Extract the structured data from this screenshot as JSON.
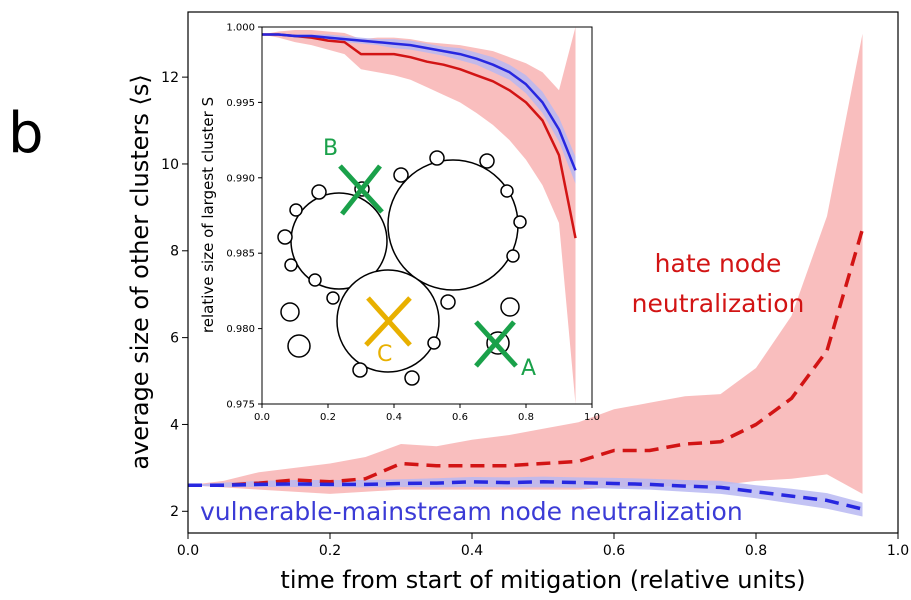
{
  "panel_label": "b",
  "colors": {
    "red": "#d21414",
    "red_band": "#f7a8a8",
    "blue": "#2727e0",
    "blue_band": "#b8b8f2",
    "green": "#1aa14a",
    "yellow": "#e8b000"
  },
  "annotations": {
    "red_line1": "hate node",
    "red_line2": "neutralization",
    "blue": "vulnerable-mainstream node neutralization",
    "marker_a": "A",
    "marker_b": "B",
    "marker_c": "C"
  },
  "chart_data": [
    {
      "type": "line",
      "title": "",
      "xlabel": "time from start of mitigation (relative units)",
      "ylabel": "average size of other clusters ⟨s⟩",
      "xlim": [
        0.0,
        1.0
      ],
      "ylim": [
        1.5,
        13.5
      ],
      "xticks": [
        "0.0",
        "0.2",
        "0.4",
        "0.6",
        "0.8",
        "1.0"
      ],
      "yticks": [
        "2",
        "4",
        "6",
        "8",
        "10",
        "12"
      ],
      "grid": false,
      "series": [
        {
          "name": "hate node neutralization",
          "style": "dashed",
          "x": [
            0.0,
            0.05,
            0.1,
            0.15,
            0.2,
            0.25,
            0.3,
            0.35,
            0.4,
            0.45,
            0.5,
            0.55,
            0.6,
            0.65,
            0.7,
            0.75,
            0.8,
            0.85,
            0.9,
            0.95
          ],
          "y": [
            2.6,
            2.6,
            2.65,
            2.72,
            2.68,
            2.75,
            3.1,
            3.05,
            3.05,
            3.05,
            3.1,
            3.15,
            3.4,
            3.4,
            3.55,
            3.6,
            4.0,
            4.6,
            5.7,
            8.5
          ],
          "lower": [
            2.6,
            2.55,
            2.5,
            2.45,
            2.4,
            2.45,
            2.5,
            2.5,
            2.5,
            2.5,
            2.5,
            2.5,
            2.55,
            2.55,
            2.6,
            2.6,
            2.7,
            2.75,
            2.85,
            2.4
          ],
          "upper": [
            2.6,
            2.7,
            2.9,
            3.0,
            3.1,
            3.25,
            3.55,
            3.5,
            3.65,
            3.75,
            3.9,
            4.05,
            4.35,
            4.5,
            4.65,
            4.7,
            5.3,
            6.5,
            8.8,
            13.0
          ]
        },
        {
          "name": "vulnerable-mainstream node neutralization",
          "style": "dashed",
          "x": [
            0.0,
            0.05,
            0.1,
            0.15,
            0.2,
            0.25,
            0.3,
            0.35,
            0.4,
            0.45,
            0.5,
            0.55,
            0.6,
            0.65,
            0.7,
            0.75,
            0.8,
            0.85,
            0.9,
            0.95
          ],
          "y": [
            2.6,
            2.6,
            2.62,
            2.63,
            2.62,
            2.62,
            2.64,
            2.65,
            2.68,
            2.66,
            2.68,
            2.66,
            2.64,
            2.62,
            2.58,
            2.55,
            2.45,
            2.35,
            2.25,
            2.05
          ],
          "lower": [
            2.6,
            2.56,
            2.56,
            2.56,
            2.56,
            2.55,
            2.56,
            2.55,
            2.56,
            2.55,
            2.55,
            2.54,
            2.52,
            2.5,
            2.45,
            2.4,
            2.3,
            2.18,
            2.06,
            1.88
          ],
          "upper": [
            2.6,
            2.66,
            2.7,
            2.72,
            2.72,
            2.72,
            2.74,
            2.76,
            2.79,
            2.78,
            2.8,
            2.78,
            2.77,
            2.75,
            2.72,
            2.7,
            2.6,
            2.52,
            2.42,
            2.2
          ]
        }
      ]
    },
    {
      "type": "line",
      "title": "",
      "xlabel": "",
      "ylabel": "relative size of largest cluster S",
      "xlim": [
        0.0,
        1.0
      ],
      "ylim": [
        0.975,
        1.0
      ],
      "xticks": [
        "0.0",
        "0.2",
        "0.4",
        "0.6",
        "0.8",
        "1.0"
      ],
      "yticks": [
        "0.975",
        "0.980",
        "0.985",
        "0.990",
        "0.995",
        "1.000"
      ],
      "grid": false,
      "series": [
        {
          "name": "hate node neutralization",
          "style": "solid",
          "x": [
            0.0,
            0.05,
            0.1,
            0.15,
            0.2,
            0.25,
            0.3,
            0.35,
            0.4,
            0.45,
            0.5,
            0.55,
            0.6,
            0.65,
            0.7,
            0.75,
            0.8,
            0.85,
            0.9,
            0.95
          ],
          "y": [
            0.9995,
            0.9995,
            0.9994,
            0.9993,
            0.9991,
            0.999,
            0.9982,
            0.9982,
            0.9982,
            0.998,
            0.9977,
            0.9975,
            0.9972,
            0.9968,
            0.9964,
            0.9958,
            0.995,
            0.9938,
            0.9915,
            0.986
          ],
          "lower": [
            0.9995,
            0.9993,
            0.999,
            0.9988,
            0.9985,
            0.9982,
            0.9972,
            0.997,
            0.9968,
            0.9965,
            0.996,
            0.9955,
            0.995,
            0.9943,
            0.9935,
            0.9925,
            0.9912,
            0.9895,
            0.987,
            0.975
          ],
          "upper": [
            0.9995,
            0.9997,
            0.9998,
            0.9998,
            0.9997,
            0.9996,
            0.9992,
            0.9993,
            0.9993,
            0.9992,
            0.999,
            0.9989,
            0.9988,
            0.9986,
            0.9984,
            0.998,
            0.9976,
            0.997,
            0.9958,
            1.0
          ]
        },
        {
          "name": "vulnerable-mainstream node neutralization",
          "style": "solid",
          "x": [
            0.0,
            0.05,
            0.1,
            0.15,
            0.2,
            0.25,
            0.3,
            0.35,
            0.4,
            0.45,
            0.5,
            0.55,
            0.6,
            0.65,
            0.7,
            0.75,
            0.8,
            0.85,
            0.9,
            0.95
          ],
          "y": [
            0.9995,
            0.9995,
            0.9994,
            0.9994,
            0.9993,
            0.9992,
            0.9991,
            0.999,
            0.9989,
            0.9988,
            0.9986,
            0.9984,
            0.9982,
            0.9979,
            0.9975,
            0.997,
            0.9962,
            0.995,
            0.9932,
            0.9905
          ],
          "lower": [
            0.9995,
            0.9994,
            0.9993,
            0.9992,
            0.9991,
            0.999,
            0.9989,
            0.9988,
            0.9986,
            0.9985,
            0.9983,
            0.9981,
            0.9978,
            0.9975,
            0.997,
            0.9965,
            0.9956,
            0.9943,
            0.9924,
            0.9896
          ],
          "upper": [
            0.9995,
            0.9996,
            0.9995,
            0.9995,
            0.9995,
            0.9994,
            0.9993,
            0.9992,
            0.9992,
            0.9991,
            0.9989,
            0.9987,
            0.9986,
            0.9983,
            0.998,
            0.9975,
            0.9968,
            0.9957,
            0.994,
            0.9914
          ]
        }
      ]
    }
  ]
}
